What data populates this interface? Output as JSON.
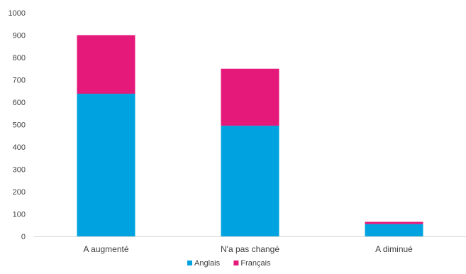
{
  "chart_data": {
    "type": "bar",
    "stacked": true,
    "categories": [
      "A augmenté",
      "N'a pas changé",
      "A diminué"
    ],
    "series": [
      {
        "name": "Anglais",
        "color": "#00a3e0",
        "values": [
          638,
          495,
          55
        ]
      },
      {
        "name": "Français",
        "color": "#e5197a",
        "values": [
          262,
          255,
          10
        ]
      }
    ],
    "ylim": [
      0,
      1000
    ],
    "yticks": [
      0,
      100,
      200,
      300,
      400,
      500,
      600,
      700,
      800,
      900,
      1000
    ],
    "grid": false,
    "legend": "bottom"
  }
}
